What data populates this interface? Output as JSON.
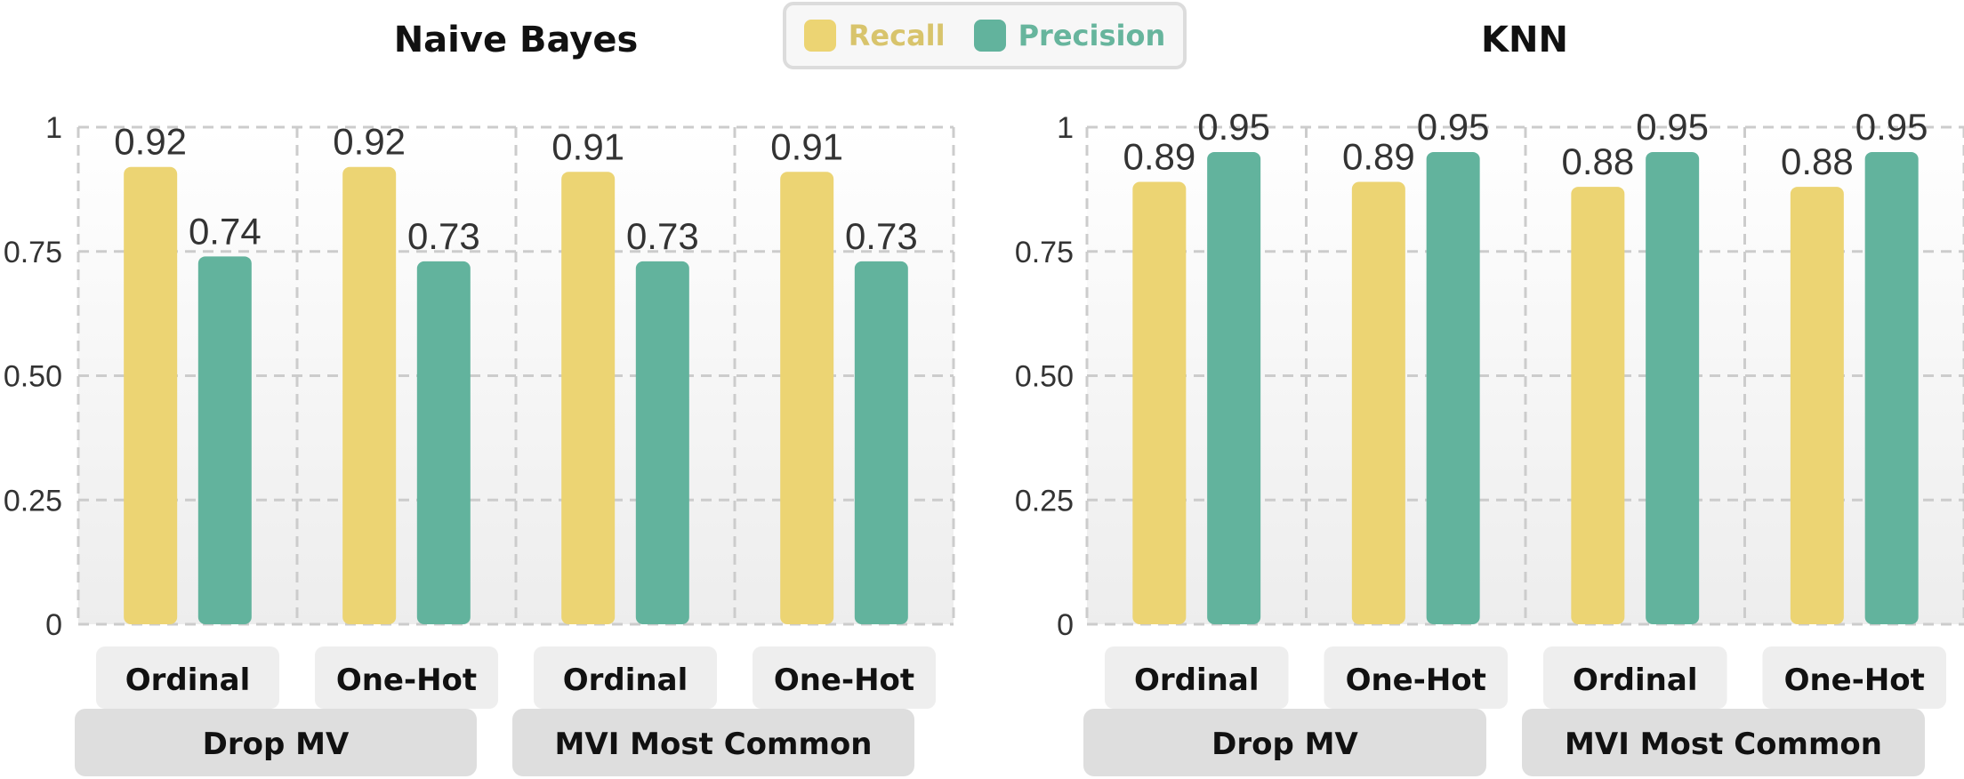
{
  "legend": {
    "items": [
      {
        "label": "Recall",
        "color": "#ecd473"
      },
      {
        "label": "Precision",
        "color": "#62b39d"
      }
    ]
  },
  "chart_data": [
    {
      "type": "bar",
      "title": "Naive Bayes",
      "ylim": [
        0,
        1
      ],
      "yticks": [
        "0",
        "0.25",
        "0.50",
        "0.75",
        "1"
      ],
      "yticks_values": [
        0,
        0.25,
        0.5,
        0.75,
        1
      ],
      "grid": true,
      "categories": [
        "Ordinal",
        "One-Hot",
        "Ordinal",
        "One-Hot"
      ],
      "groups": [
        {
          "label": "Drop MV",
          "span": 2
        },
        {
          "label": "MVI Most Common",
          "span": 2
        }
      ],
      "series": [
        {
          "name": "Recall",
          "values": [
            0.92,
            0.92,
            0.91,
            0.91
          ],
          "labels": [
            "0.92",
            "0.92",
            "0.91",
            "0.91"
          ]
        },
        {
          "name": "Precision",
          "values": [
            0.74,
            0.73,
            0.73,
            0.73
          ],
          "labels": [
            "0.74",
            "0.73",
            "0.73",
            "0.73"
          ]
        }
      ]
    },
    {
      "type": "bar",
      "title": "KNN",
      "ylim": [
        0,
        1
      ],
      "yticks": [
        "0",
        "0.25",
        "0.50",
        "0.75",
        "1"
      ],
      "yticks_values": [
        0,
        0.25,
        0.5,
        0.75,
        1
      ],
      "grid": true,
      "categories": [
        "Ordinal",
        "One-Hot",
        "Ordinal",
        "One-Hot"
      ],
      "groups": [
        {
          "label": "Drop MV",
          "span": 2
        },
        {
          "label": "MVI Most Common",
          "span": 2
        }
      ],
      "series": [
        {
          "name": "Recall",
          "values": [
            0.89,
            0.89,
            0.88,
            0.88
          ],
          "labels": [
            "0.89",
            "0.89",
            "0.88",
            "0.88"
          ]
        },
        {
          "name": "Precision",
          "values": [
            0.95,
            0.95,
            0.95,
            0.95
          ],
          "labels": [
            "0.95",
            "0.95",
            "0.95",
            "0.95"
          ]
        }
      ]
    }
  ]
}
